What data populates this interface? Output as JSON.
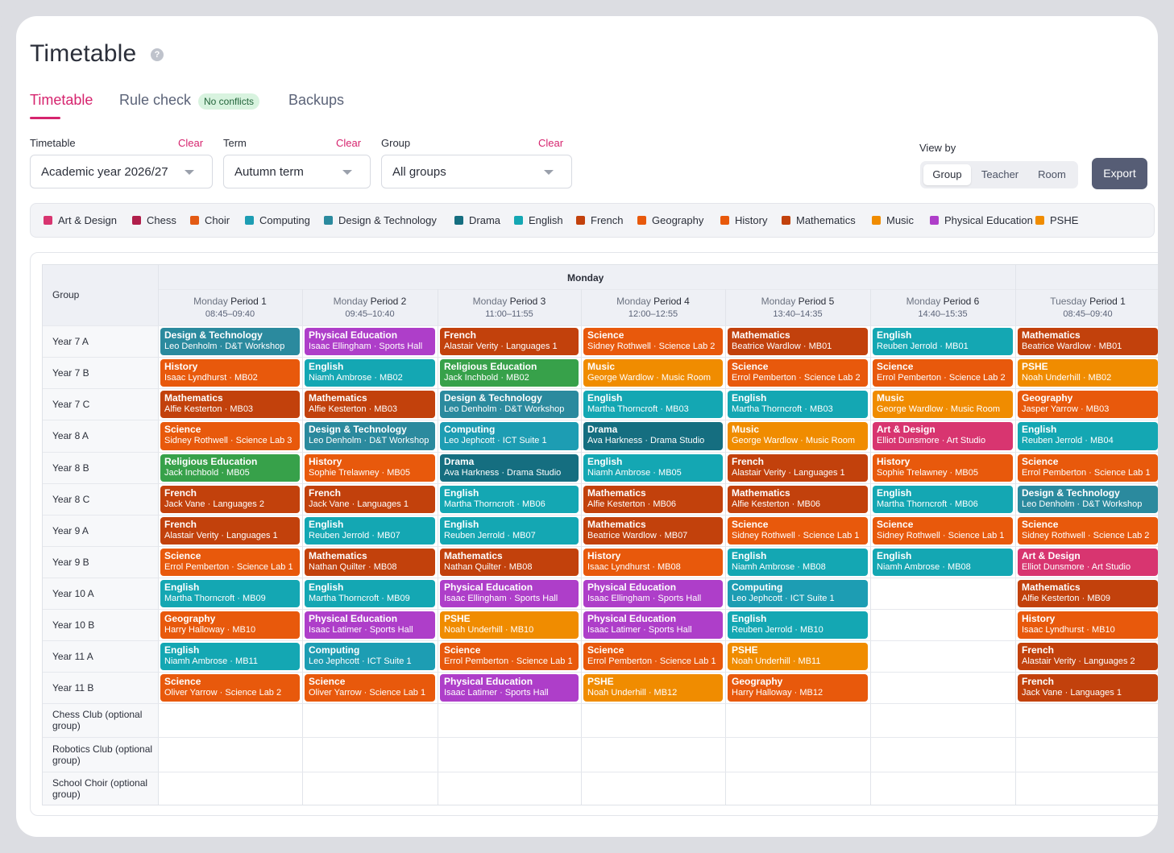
{
  "page": {
    "title": "Timetable",
    "tabs": [
      "Timetable",
      "Rule check",
      "Backups"
    ],
    "rule_badge": "No conflicts"
  },
  "filters": [
    {
      "label": "Timetable",
      "clear": "Clear",
      "value": "Academic year 2026/27"
    },
    {
      "label": "Term",
      "clear": "Clear",
      "value": "Autumn term"
    },
    {
      "label": "Group",
      "clear": "Clear",
      "value": "All groups"
    }
  ],
  "view_by": {
    "label": "View by",
    "options": [
      "Group",
      "Teacher",
      "Room"
    ],
    "selected": "Group"
  },
  "export_label": "Export",
  "subjects": {
    "Art & Design": "#d83570",
    "Chess": "#b01f4b",
    "Choir": "#e35a14",
    "Computing": "#1d9db3",
    "Design & Technology": "#2b8a9e",
    "Drama": "#156e80",
    "English": "#14a7b3",
    "French": "#c2410c",
    "Geography": "#e8590c",
    "History": "#e8590c",
    "Mathematics": "#c2410c",
    "Music": "#f08c00",
    "Physical Education": "#ae3ec9",
    "PSHE": "#f08c00",
    "Science": "#e8590c",
    "Religious Education": "#37a14a"
  },
  "legend": [
    "Art & Design",
    "Chess",
    "Choir",
    "Computing",
    "Design & Technology",
    "Drama",
    "English",
    "French",
    "Geography",
    "History",
    "Mathematics",
    "Music",
    "Physical Education",
    "PSHE"
  ],
  "grid": {
    "group_header": "Group",
    "day_header": "Monday",
    "periods": [
      {
        "day": "Monday",
        "name": "Period 1",
        "time": "08:45–09:40"
      },
      {
        "day": "Monday",
        "name": "Period 2",
        "time": "09:45–10:40"
      },
      {
        "day": "Monday",
        "name": "Period 3",
        "time": "11:00–11:55"
      },
      {
        "day": "Monday",
        "name": "Period 4",
        "time": "12:00–12:55"
      },
      {
        "day": "Monday",
        "name": "Period 5",
        "time": "13:40–14:35"
      },
      {
        "day": "Monday",
        "name": "Period 6",
        "time": "14:40–15:35"
      },
      {
        "day": "Tuesday",
        "name": "Period 1",
        "time": "08:45–09:40"
      }
    ],
    "rows": [
      {
        "group": "Year 7 A",
        "cells": [
          {
            "s": "Design & Technology",
            "d": "Leo Denholm · D&T Workshop"
          },
          {
            "s": "Physical Education",
            "d": "Isaac Ellingham · Sports Hall"
          },
          {
            "s": "French",
            "d": "Alastair Verity · Languages 1"
          },
          {
            "s": "Science",
            "d": "Sidney Rothwell · Science Lab 2"
          },
          {
            "s": "Mathematics",
            "d": "Beatrice Wardlow · MB01"
          },
          {
            "s": "English",
            "d": "Reuben Jerrold · MB01"
          },
          {
            "s": "Mathematics",
            "d": "Beatrice Wardlow · MB01"
          }
        ]
      },
      {
        "group": "Year 7 B",
        "cells": [
          {
            "s": "History",
            "d": "Isaac Lyndhurst · MB02"
          },
          {
            "s": "English",
            "d": "Niamh Ambrose · MB02"
          },
          {
            "s": "Religious Education",
            "d": "Jack Inchbold · MB02"
          },
          {
            "s": "Music",
            "d": "George Wardlow · Music Room"
          },
          {
            "s": "Science",
            "d": "Errol Pemberton · Science Lab 2"
          },
          {
            "s": "Science",
            "d": "Errol Pemberton · Science Lab 2"
          },
          {
            "s": "PSHE",
            "d": "Noah Underhill · MB02"
          }
        ]
      },
      {
        "group": "Year 7 C",
        "cells": [
          {
            "s": "Mathematics",
            "d": "Alfie Kesterton · MB03"
          },
          {
            "s": "Mathematics",
            "d": "Alfie Kesterton · MB03"
          },
          {
            "s": "Design & Technology",
            "d": "Leo Denholm · D&T Workshop"
          },
          {
            "s": "English",
            "d": "Martha Thorncroft · MB03"
          },
          {
            "s": "English",
            "d": "Martha Thorncroft · MB03"
          },
          {
            "s": "Music",
            "d": "George Wardlow · Music Room"
          },
          {
            "s": "Geography",
            "d": "Jasper Yarrow · MB03"
          }
        ]
      },
      {
        "group": "Year 8 A",
        "cells": [
          {
            "s": "Science",
            "d": "Sidney Rothwell · Science Lab 3"
          },
          {
            "s": "Design & Technology",
            "d": "Leo Denholm · D&T Workshop"
          },
          {
            "s": "Computing",
            "d": "Leo Jephcott · ICT Suite 1"
          },
          {
            "s": "Drama",
            "d": "Ava Harkness · Drama Studio"
          },
          {
            "s": "Music",
            "d": "George Wardlow · Music Room"
          },
          {
            "s": "Art & Design",
            "d": "Elliot Dunsmore · Art Studio"
          },
          {
            "s": "English",
            "d": "Reuben Jerrold · MB04"
          }
        ]
      },
      {
        "group": "Year 8 B",
        "cells": [
          {
            "s": "Religious Education",
            "d": "Jack Inchbold · MB05"
          },
          {
            "s": "History",
            "d": "Sophie Trelawney · MB05"
          },
          {
            "s": "Drama",
            "d": "Ava Harkness · Drama Studio"
          },
          {
            "s": "English",
            "d": "Niamh Ambrose · MB05"
          },
          {
            "s": "French",
            "d": "Alastair Verity · Languages 1"
          },
          {
            "s": "History",
            "d": "Sophie Trelawney · MB05"
          },
          {
            "s": "Science",
            "d": "Errol Pemberton · Science Lab 1"
          }
        ]
      },
      {
        "group": "Year 8 C",
        "cells": [
          {
            "s": "French",
            "d": "Jack Vane · Languages 2"
          },
          {
            "s": "French",
            "d": "Jack Vane · Languages 1"
          },
          {
            "s": "English",
            "d": "Martha Thorncroft · MB06"
          },
          {
            "s": "Mathematics",
            "d": "Alfie Kesterton · MB06"
          },
          {
            "s": "Mathematics",
            "d": "Alfie Kesterton · MB06"
          },
          {
            "s": "English",
            "d": "Martha Thorncroft · MB06"
          },
          {
            "s": "Design & Technology",
            "d": "Leo Denholm · D&T Workshop"
          }
        ]
      },
      {
        "group": "Year 9 A",
        "cells": [
          {
            "s": "French",
            "d": "Alastair Verity · Languages 1"
          },
          {
            "s": "English",
            "d": "Reuben Jerrold · MB07"
          },
          {
            "s": "English",
            "d": "Reuben Jerrold · MB07"
          },
          {
            "s": "Mathematics",
            "d": "Beatrice Wardlow · MB07"
          },
          {
            "s": "Science",
            "d": "Sidney Rothwell · Science Lab 1"
          },
          {
            "s": "Science",
            "d": "Sidney Rothwell · Science Lab 1"
          },
          {
            "s": "Science",
            "d": "Sidney Rothwell · Science Lab 2"
          }
        ]
      },
      {
        "group": "Year 9 B",
        "cells": [
          {
            "s": "Science",
            "d": "Errol Pemberton · Science Lab 1"
          },
          {
            "s": "Mathematics",
            "d": "Nathan Quilter · MB08"
          },
          {
            "s": "Mathematics",
            "d": "Nathan Quilter · MB08"
          },
          {
            "s": "History",
            "d": "Isaac Lyndhurst · MB08"
          },
          {
            "s": "English",
            "d": "Niamh Ambrose · MB08"
          },
          {
            "s": "English",
            "d": "Niamh Ambrose · MB08"
          },
          {
            "s": "Art & Design",
            "d": "Elliot Dunsmore · Art Studio"
          }
        ]
      },
      {
        "group": "Year 10 A",
        "cells": [
          {
            "s": "English",
            "d": "Martha Thorncroft · MB09"
          },
          {
            "s": "English",
            "d": "Martha Thorncroft · MB09"
          },
          {
            "s": "Physical Education",
            "d": "Isaac Ellingham · Sports Hall"
          },
          {
            "s": "Physical Education",
            "d": "Isaac Ellingham · Sports Hall"
          },
          {
            "s": "Computing",
            "d": "Leo Jephcott · ICT Suite 1"
          },
          null,
          {
            "s": "Mathematics",
            "d": "Alfie Kesterton · MB09"
          }
        ]
      },
      {
        "group": "Year 10 B",
        "cells": [
          {
            "s": "Geography",
            "d": "Harry Halloway · MB10"
          },
          {
            "s": "Physical Education",
            "d": "Isaac Latimer · Sports Hall"
          },
          {
            "s": "PSHE",
            "d": "Noah Underhill · MB10"
          },
          {
            "s": "Physical Education",
            "d": "Isaac Latimer · Sports Hall"
          },
          {
            "s": "English",
            "d": "Reuben Jerrold · MB10"
          },
          null,
          {
            "s": "History",
            "d": "Isaac Lyndhurst · MB10"
          }
        ]
      },
      {
        "group": "Year 11 A",
        "cells": [
          {
            "s": "English",
            "d": "Niamh Ambrose · MB11"
          },
          {
            "s": "Computing",
            "d": "Leo Jephcott · ICT Suite 1"
          },
          {
            "s": "Science",
            "d": "Errol Pemberton · Science Lab 1"
          },
          {
            "s": "Science",
            "d": "Errol Pemberton · Science Lab 1"
          },
          {
            "s": "PSHE",
            "d": "Noah Underhill · MB11"
          },
          null,
          {
            "s": "French",
            "d": "Alastair Verity · Languages 2"
          }
        ]
      },
      {
        "group": "Year 11 B",
        "cells": [
          {
            "s": "Science",
            "d": "Oliver Yarrow · Science Lab 2"
          },
          {
            "s": "Science",
            "d": "Oliver Yarrow · Science Lab 1"
          },
          {
            "s": "Physical Education",
            "d": "Isaac Latimer · Sports Hall"
          },
          {
            "s": "PSHE",
            "d": "Noah Underhill · MB12"
          },
          {
            "s": "Geography",
            "d": "Harry Halloway · MB12"
          },
          null,
          {
            "s": "French",
            "d": "Jack Vane · Languages 1"
          }
        ]
      },
      {
        "group": "Chess Club (optional group)",
        "cells": [
          null,
          null,
          null,
          null,
          null,
          null,
          null
        ]
      },
      {
        "group": "Robotics Club (optional group)",
        "cells": [
          null,
          null,
          null,
          null,
          null,
          null,
          null
        ]
      },
      {
        "group": "School Choir (optional group)",
        "cells": [
          null,
          null,
          null,
          null,
          null,
          null,
          null
        ]
      }
    ]
  }
}
